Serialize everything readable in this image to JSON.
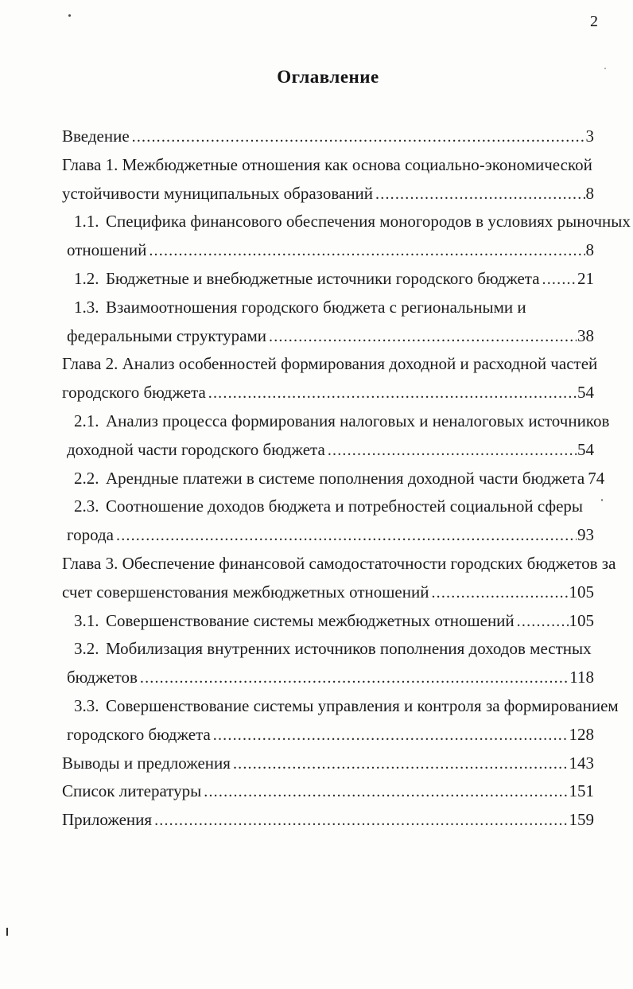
{
  "page": {
    "number": "2"
  },
  "toc": {
    "title": "Оглавление",
    "lines": [
      {
        "indent": "chapter",
        "text": "Введение",
        "page": "3"
      },
      {
        "indent": "chapter",
        "text": "Глава 1. Межбюджетные отношения как основа социально-экономической"
      },
      {
        "indent": "chapter",
        "text": "устойчивости муниципальных образований",
        "page": "8"
      },
      {
        "indent": "secnum",
        "num": "1.1.",
        "text": "Специфика финансового обеспечения моногородов в условиях рыночных"
      },
      {
        "indent": "seccont",
        "text": "отношений",
        "page": "8"
      },
      {
        "indent": "secnum",
        "num": "1.2.",
        "text": "Бюджетные и внебюджетные источники городского бюджета",
        "page": "21"
      },
      {
        "indent": "secnum",
        "num": "1.3.",
        "text": "Взаимоотношения городского бюджета с региональными и"
      },
      {
        "indent": "seccont",
        "text": "федеральными структурами",
        "page": "38"
      },
      {
        "indent": "chapter",
        "text": "Глава 2. Анализ особенностей формирования доходной и расходной частей"
      },
      {
        "indent": "chapter",
        "text": "городского бюджета",
        "page": "54"
      },
      {
        "indent": "secnum",
        "num": "2.1.",
        "text": "Анализ процесса формирования налоговых и неналоговых источников"
      },
      {
        "indent": "seccont",
        "text": "доходной части городского бюджета",
        "page": "54"
      },
      {
        "indent": "secnum",
        "num": "2.2.",
        "text": "Арендные платежи в системе пополнения доходной части бюджета",
        "page": "74"
      },
      {
        "indent": "secnum",
        "num": "2.3.",
        "text": "Соотношение доходов бюджета и потребностей социальной сферы"
      },
      {
        "indent": "seccont",
        "text": "города",
        "page": "93"
      },
      {
        "indent": "chapter",
        "text": "Глава 3. Обеспечение финансовой самодостаточности городских бюджетов за"
      },
      {
        "indent": "chapter",
        "text": "счет совершенстования межбюджетных отношений",
        "page": "105"
      },
      {
        "indent": "secnum",
        "num": "3.1.",
        "text": "Совершенствование системы межбюджетных отношений",
        "page": "105"
      },
      {
        "indent": "secnum",
        "num": "3.2.",
        "text": "Мобилизация внутренних источников пополнения доходов местных"
      },
      {
        "indent": "seccont",
        "text": "бюджетов",
        "page": "118"
      },
      {
        "indent": "secnum",
        "num": "3.3.",
        "text": "Совершенствование системы управления и контроля за формированием"
      },
      {
        "indent": "seccont",
        "text": "городского бюджета",
        "page": "128"
      },
      {
        "indent": "chapter",
        "text": "Выводы и предложения",
        "page": "143"
      },
      {
        "indent": "chapter",
        "text": "Список литературы",
        "page": "151"
      },
      {
        "indent": "chapter",
        "text": "Приложения",
        "page": "159"
      }
    ]
  }
}
